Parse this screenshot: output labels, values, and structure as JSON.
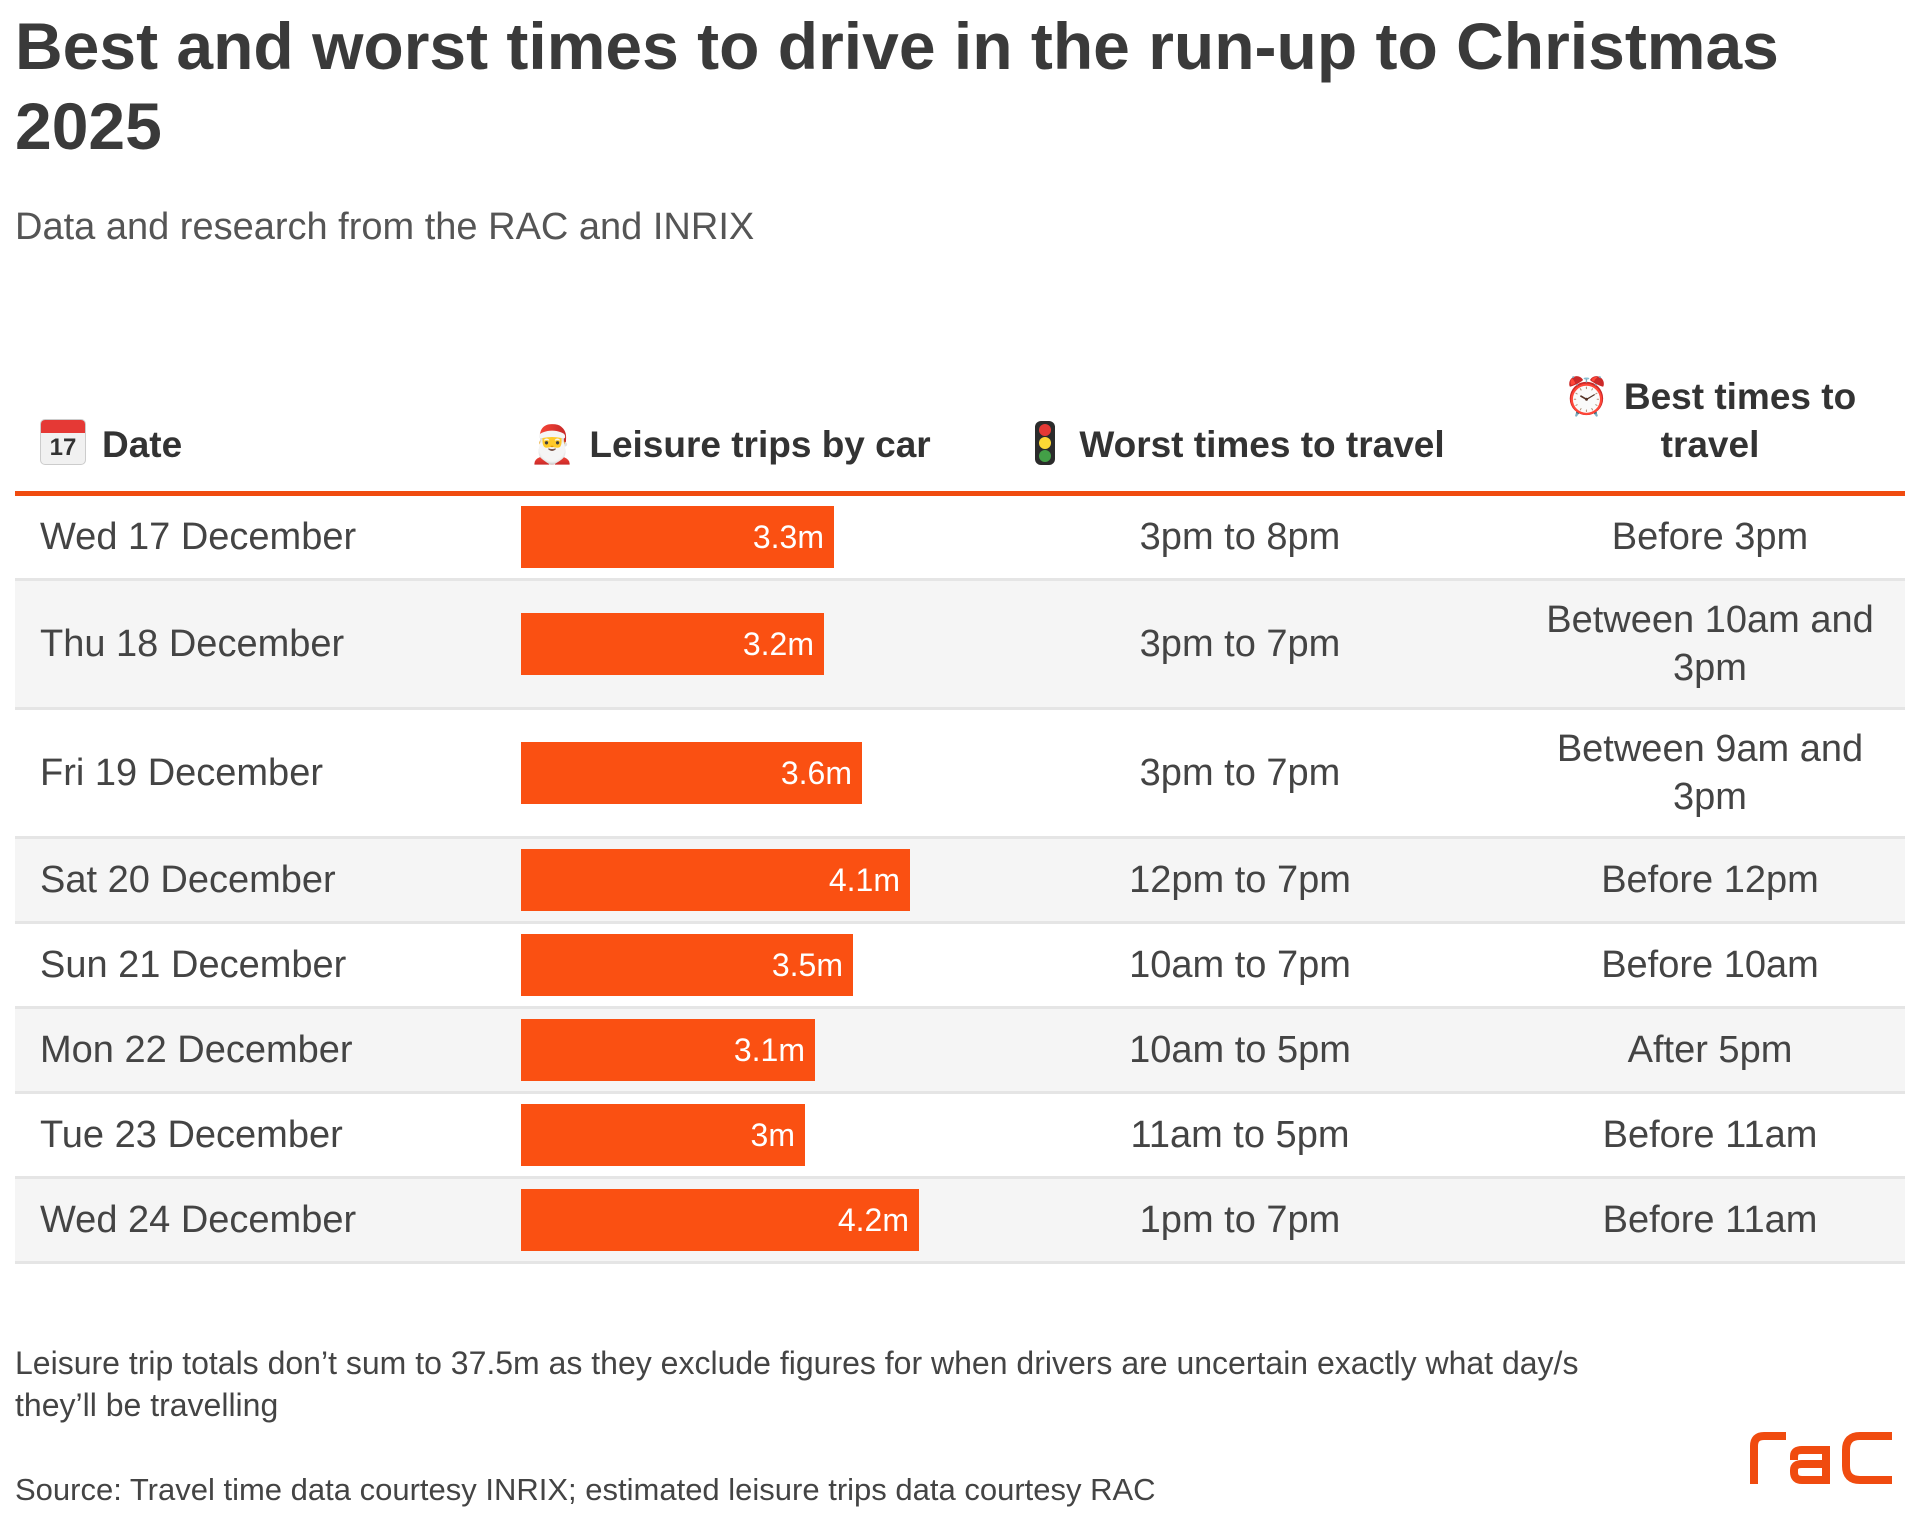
{
  "title": "Best and worst times to drive in the run-up to Christmas 2025",
  "subtitle": "Data and research from the RAC and INRIX",
  "columns": {
    "date": {
      "icon": "calendar-icon",
      "icon_text": "17",
      "label": "Date"
    },
    "trips": {
      "icon": "santa-icon",
      "label": "Leisure trips by car"
    },
    "worst": {
      "icon": "traffic-light-icon",
      "label": "Worst times to travel"
    },
    "best": {
      "icon": "alarm-clock-icon",
      "label": "Best times to travel"
    }
  },
  "colors": {
    "accent": "#fa5012",
    "rule": "#f04b0f",
    "row_alt": "#f5f5f5"
  },
  "chart_data": {
    "type": "table",
    "bar_unit": "m",
    "bar_scale_max": 5.1,
    "rows": [
      {
        "date": "Wed 17 December",
        "trips": 3.3,
        "trips_label": "3.3m",
        "worst": "3pm to 8pm",
        "best": "Before 3pm"
      },
      {
        "date": "Thu 18 December",
        "trips": 3.2,
        "trips_label": "3.2m",
        "worst": "3pm to 7pm",
        "best": "Between 10am and 3pm"
      },
      {
        "date": "Fri 19 December",
        "trips": 3.6,
        "trips_label": "3.6m",
        "worst": "3pm to 7pm",
        "best": "Between 9am and 3pm"
      },
      {
        "date": "Sat 20 December",
        "trips": 4.1,
        "trips_label": "4.1m",
        "worst": "12pm to 7pm",
        "best": "Before 12pm"
      },
      {
        "date": "Sun 21 December",
        "trips": 3.5,
        "trips_label": "3.5m",
        "worst": "10am to 7pm",
        "best": "Before 10am"
      },
      {
        "date": "Mon 22 December",
        "trips": 3.1,
        "trips_label": "3.1m",
        "worst": "10am to 5pm",
        "best": "After 5pm"
      },
      {
        "date": "Tue 23 December",
        "trips": 3.0,
        "trips_label": "3m",
        "worst": "11am to 5pm",
        "best": "Before 11am"
      },
      {
        "date": "Wed 24 December",
        "trips": 4.2,
        "trips_label": "4.2m",
        "worst": "1pm to 7pm",
        "best": "Before 11am"
      }
    ]
  },
  "footnote": "Leisure trip totals don’t sum to 37.5m as they exclude figures for when drivers are uncertain exactly what day/s they’ll be travelling",
  "source": "Source: Travel time data courtesy INRIX; estimated leisure trips data courtesy RAC",
  "logo": {
    "icon": "rac-logo",
    "text": "RAC"
  }
}
